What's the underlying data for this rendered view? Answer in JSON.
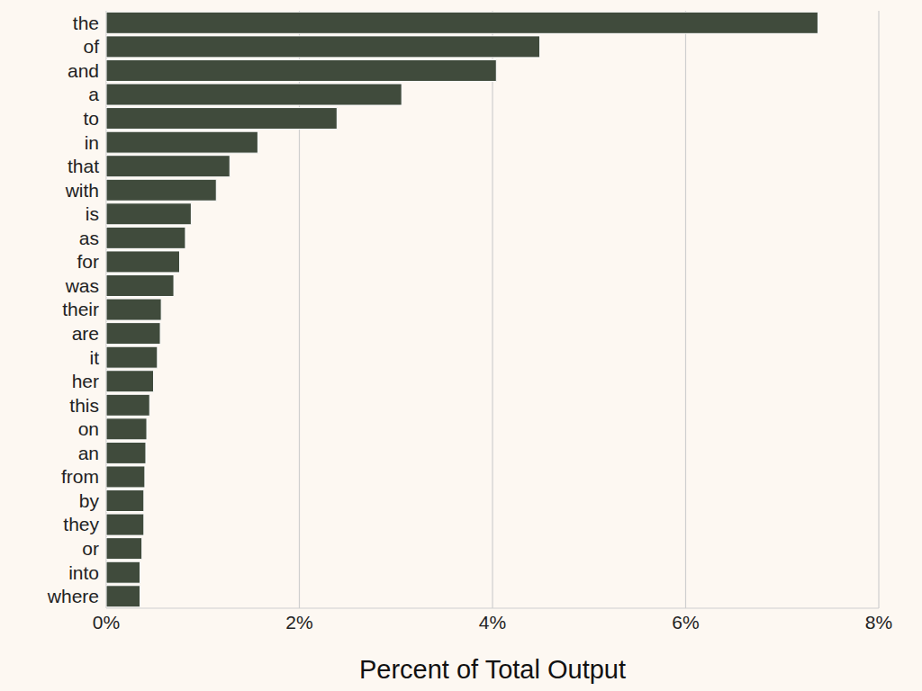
{
  "chart_data": {
    "type": "bar",
    "orientation": "horizontal",
    "x_label": "Percent of Total Output",
    "categories": [
      "the",
      "of",
      "and",
      "a",
      "to",
      "in",
      "that",
      "with",
      "is",
      "as",
      "for",
      "was",
      "their",
      "are",
      "it",
      "her",
      "this",
      "on",
      "an",
      "from",
      "by",
      "they",
      "or",
      "into",
      "where"
    ],
    "values": [
      7.37,
      4.49,
      4.04,
      3.06,
      2.39,
      1.57,
      1.28,
      1.14,
      0.88,
      0.82,
      0.76,
      0.7,
      0.57,
      0.56,
      0.53,
      0.49,
      0.45,
      0.42,
      0.41,
      0.4,
      0.39,
      0.39,
      0.37,
      0.35,
      0.35
    ],
    "color": "#404b3c",
    "xlim": [
      0,
      8
    ],
    "xticks": [
      {
        "value": 0,
        "label": "0%"
      },
      {
        "value": 2,
        "label": "2%"
      },
      {
        "value": 4,
        "label": "4%"
      },
      {
        "value": 6,
        "label": "6%"
      },
      {
        "value": 8,
        "label": "8%"
      }
    ],
    "grid": true
  }
}
